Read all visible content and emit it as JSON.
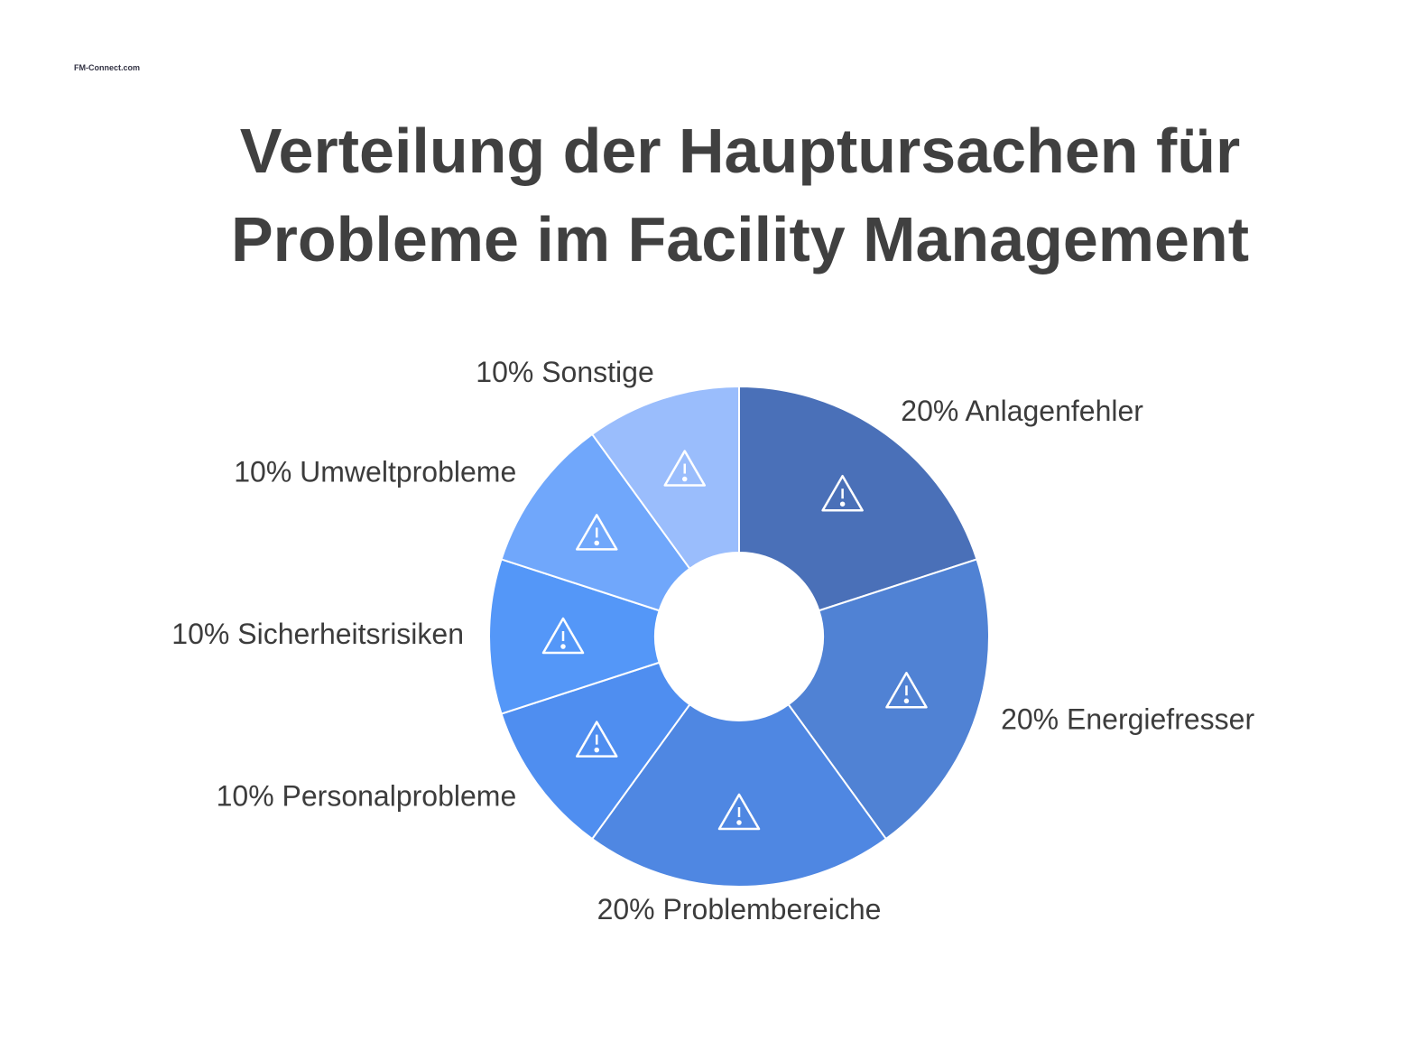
{
  "logo": "FM-Connect.com",
  "chart_data": {
    "type": "donut",
    "title": "Verteilung der Hauptursachen für Probleme im Facility Management",
    "categories": [
      "Anlagenfehler",
      "Energiefresser",
      "Problembereiche",
      "Personalprobleme",
      "Sicherheitsrisiken",
      "Umweltprobleme",
      "Sonstige"
    ],
    "values": [
      20,
      20,
      20,
      10,
      10,
      10,
      10
    ],
    "value_labels": [
      "20%",
      "20%",
      "20%",
      "10%",
      "10%",
      "10%",
      "10%"
    ],
    "colors": [
      "#4a70b8",
      "#5082d4",
      "#4f87e2",
      "#4f8ef0",
      "#5497f8",
      "#70a7fb",
      "#9abdfc"
    ]
  }
}
